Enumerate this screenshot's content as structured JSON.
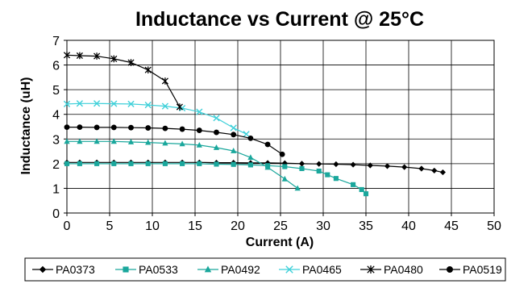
{
  "chart_data": {
    "type": "line",
    "title": "Inductance vs Current @ 25°C",
    "xlabel": "Current (A)",
    "ylabel": "Inductance (uH)",
    "xlim": [
      0,
      50
    ],
    "ylim": [
      0,
      7
    ],
    "xticks": [
      0,
      5,
      10,
      15,
      20,
      25,
      30,
      35,
      40,
      45,
      50
    ],
    "yticks": [
      0,
      1,
      2,
      3,
      4,
      5,
      6,
      7
    ],
    "grid": true,
    "legend_position": "bottom",
    "series": [
      {
        "name": "PA0373",
        "marker": "diamond",
        "color": "#000000",
        "x": [
          0,
          1.5,
          3.5,
          5.5,
          7.5,
          9.5,
          11.5,
          13.5,
          15.5,
          17.5,
          19.5,
          21.5,
          23.5,
          25.5,
          27.5,
          29.5,
          31.5,
          33.5,
          35.5,
          37.5,
          39.5,
          41.5,
          43,
          44
        ],
        "values": [
          2.05,
          2.05,
          2.05,
          2.05,
          2.05,
          2.05,
          2.05,
          2.05,
          2.05,
          2.04,
          2.04,
          2.03,
          2.03,
          2.02,
          2.0,
          1.99,
          1.98,
          1.96,
          1.93,
          1.9,
          1.86,
          1.8,
          1.72,
          1.65
        ]
      },
      {
        "name": "PA0533",
        "marker": "square",
        "color": "#1aa79c",
        "x": [
          0,
          1.5,
          3.5,
          5.5,
          7.5,
          9.5,
          11.5,
          13.5,
          15.5,
          17.5,
          19.5,
          21.5,
          23.5,
          25.5,
          27.5,
          29.5,
          30.5,
          31.5,
          33.5,
          34.5,
          35
        ],
        "values": [
          2.0,
          2.0,
          2.0,
          2.0,
          2.0,
          2.0,
          2.0,
          2.0,
          2.0,
          1.98,
          1.97,
          1.95,
          1.92,
          1.88,
          1.8,
          1.7,
          1.55,
          1.4,
          1.15,
          0.95,
          0.78
        ]
      },
      {
        "name": "PA0492",
        "marker": "triangle",
        "color": "#1aa79c",
        "x": [
          0,
          1.5,
          3.5,
          5.5,
          7.5,
          9.5,
          11.5,
          13.5,
          15.5,
          17.5,
          19.5,
          21.5,
          23.5,
          25.5,
          27
        ],
        "values": [
          2.9,
          2.9,
          2.9,
          2.9,
          2.88,
          2.86,
          2.83,
          2.8,
          2.75,
          2.65,
          2.52,
          2.25,
          1.85,
          1.38,
          1.0
        ]
      },
      {
        "name": "PA0465",
        "marker": "x",
        "color": "#3fd0d9",
        "x": [
          0,
          1.5,
          3.5,
          5.5,
          7.5,
          9.5,
          11.5,
          13.5,
          15.5,
          17.5,
          19.5,
          21
        ],
        "values": [
          4.42,
          4.44,
          4.44,
          4.43,
          4.42,
          4.38,
          4.33,
          4.25,
          4.1,
          3.85,
          3.45,
          3.2
        ]
      },
      {
        "name": "PA0480",
        "marker": "star",
        "color": "#000000",
        "x": [
          0,
          1.5,
          3.5,
          5.5,
          7.5,
          9.5,
          11.5,
          13.2
        ],
        "values": [
          6.4,
          6.38,
          6.36,
          6.25,
          6.1,
          5.8,
          5.35,
          4.3
        ]
      },
      {
        "name": "PA0519",
        "marker": "circle",
        "color": "#000000",
        "x": [
          0,
          1.5,
          3.5,
          5.5,
          7.5,
          9.5,
          11.5,
          13.5,
          15.5,
          17.5,
          19.5,
          21.5,
          23.5,
          25.2
        ],
        "values": [
          3.48,
          3.48,
          3.47,
          3.47,
          3.46,
          3.45,
          3.43,
          3.4,
          3.35,
          3.27,
          3.18,
          3.03,
          2.78,
          2.38
        ]
      }
    ]
  }
}
